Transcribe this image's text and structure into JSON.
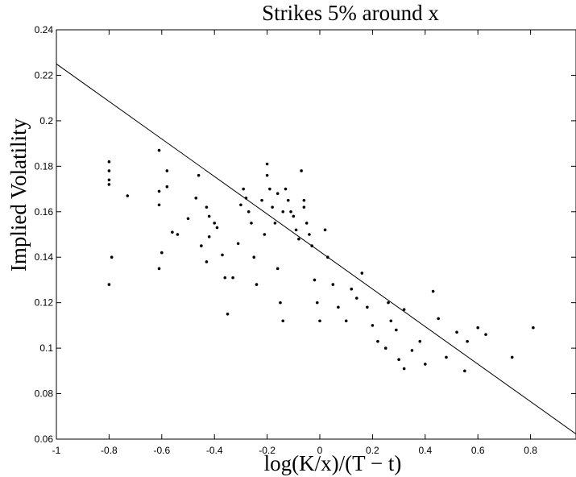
{
  "chart_data": {
    "type": "scatter",
    "title": "Strikes 5% around x",
    "xlabel": "log(K/x)/(T − t)",
    "ylabel": "Implied Volatility",
    "xlim": [
      -1,
      1
    ],
    "ylim": [
      0.06,
      0.24
    ],
    "xticks": [
      -1,
      -0.8,
      -0.6,
      -0.4,
      -0.2,
      0,
      0.2,
      0.4,
      0.6,
      0.8
    ],
    "yticks": [
      0.06,
      0.08,
      0.1,
      0.12,
      0.14,
      0.16,
      0.18,
      0.2,
      0.22,
      0.24
    ],
    "series": [
      {
        "type": "scatter",
        "color": "#000000",
        "x": [
          -0.8,
          -0.8,
          -0.8,
          -0.8,
          -0.79,
          -0.8,
          -0.73,
          -0.61,
          -0.61,
          -0.61,
          -0.6,
          -0.61,
          -0.58,
          -0.58,
          -0.56,
          -0.54,
          -0.5,
          -0.47,
          -0.46,
          -0.45,
          -0.43,
          -0.42,
          -0.42,
          -0.43,
          -0.4,
          -0.39,
          -0.37,
          -0.36,
          -0.35,
          -0.33,
          -0.31,
          -0.3,
          -0.29,
          -0.28,
          -0.27,
          -0.26,
          -0.25,
          -0.24,
          -0.22,
          -0.21,
          -0.2,
          -0.2,
          -0.19,
          -0.18,
          -0.17,
          -0.16,
          -0.15,
          -0.14,
          -0.13,
          -0.12,
          -0.11,
          -0.1,
          -0.09,
          -0.08,
          -0.07,
          -0.06,
          -0.05,
          -0.04,
          -0.03,
          -0.02,
          -0.01,
          0,
          0.02,
          0.03,
          0.05,
          0.07,
          0.1,
          0.12,
          0.14,
          0.16,
          0.18,
          0.2,
          0.22,
          0.25,
          0.27,
          0.29,
          0.3,
          0.32,
          0.35,
          0.38,
          0.4,
          0.45,
          0.48,
          0.52,
          0.55,
          0.56,
          0.6,
          0.63,
          0.73,
          0.81,
          0.32,
          0.26,
          0.43,
          -0.14,
          -0.16,
          -0.06
        ],
        "values": [
          0.182,
          0.178,
          0.174,
          0.172,
          0.14,
          0.128,
          0.167,
          0.187,
          0.169,
          0.163,
          0.142,
          0.135,
          0.178,
          0.171,
          0.151,
          0.15,
          0.157,
          0.166,
          0.176,
          0.145,
          0.162,
          0.158,
          0.149,
          0.138,
          0.155,
          0.153,
          0.141,
          0.131,
          0.115,
          0.131,
          0.146,
          0.163,
          0.17,
          0.166,
          0.16,
          0.155,
          0.14,
          0.128,
          0.165,
          0.15,
          0.181,
          0.176,
          0.17,
          0.162,
          0.155,
          0.135,
          0.12,
          0.112,
          0.17,
          0.165,
          0.16,
          0.158,
          0.152,
          0.148,
          0.178,
          0.162,
          0.155,
          0.15,
          0.145,
          0.13,
          0.12,
          0.112,
          0.152,
          0.14,
          0.128,
          0.118,
          0.112,
          0.126,
          0.122,
          0.133,
          0.118,
          0.11,
          0.103,
          0.1,
          0.112,
          0.108,
          0.095,
          0.091,
          0.099,
          0.103,
          0.093,
          0.113,
          0.096,
          0.107,
          0.09,
          0.103,
          0.109,
          0.106,
          0.096,
          0.109,
          0.117,
          0.12,
          0.125,
          0.16,
          0.168,
          0.165
        ]
      },
      {
        "type": "line",
        "color": "#000000",
        "x": [
          -1,
          1
        ],
        "values": [
          0.225,
          0.06
        ]
      }
    ]
  }
}
